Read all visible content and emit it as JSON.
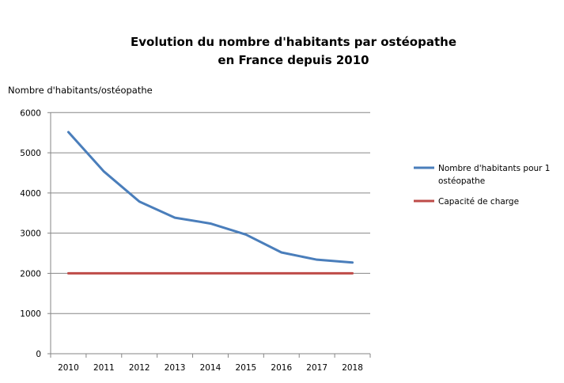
{
  "chart_data": {
    "type": "line",
    "title": [
      "Evolution du nombre d'habitants par ostéopathe",
      "en France depuis 2010"
    ],
    "ylabel": "Nombre d'habitants/ostéopathe",
    "xlabel": "",
    "categories": [
      "2010",
      "2011",
      "2012",
      "2013",
      "2014",
      "2015",
      "2016",
      "2017",
      "2018"
    ],
    "ylim": [
      0,
      6000
    ],
    "yticks": [
      0,
      1000,
      2000,
      3000,
      4000,
      5000,
      6000
    ],
    "grid": true,
    "legend_position": "right",
    "series": [
      {
        "name": [
          "Nombre d'habitants  pour 1",
          "ostéopathe"
        ],
        "color": "#4A7EBB",
        "values": [
          5515,
          4535,
          3785,
          3385,
          3240,
          2965,
          2520,
          2340,
          2270
        ]
      },
      {
        "name": [
          "Capacité de charge"
        ],
        "color": "#BE4B48",
        "values": [
          2000,
          2000,
          2000,
          2000,
          2000,
          2000,
          2000,
          2000,
          2000
        ]
      }
    ]
  }
}
